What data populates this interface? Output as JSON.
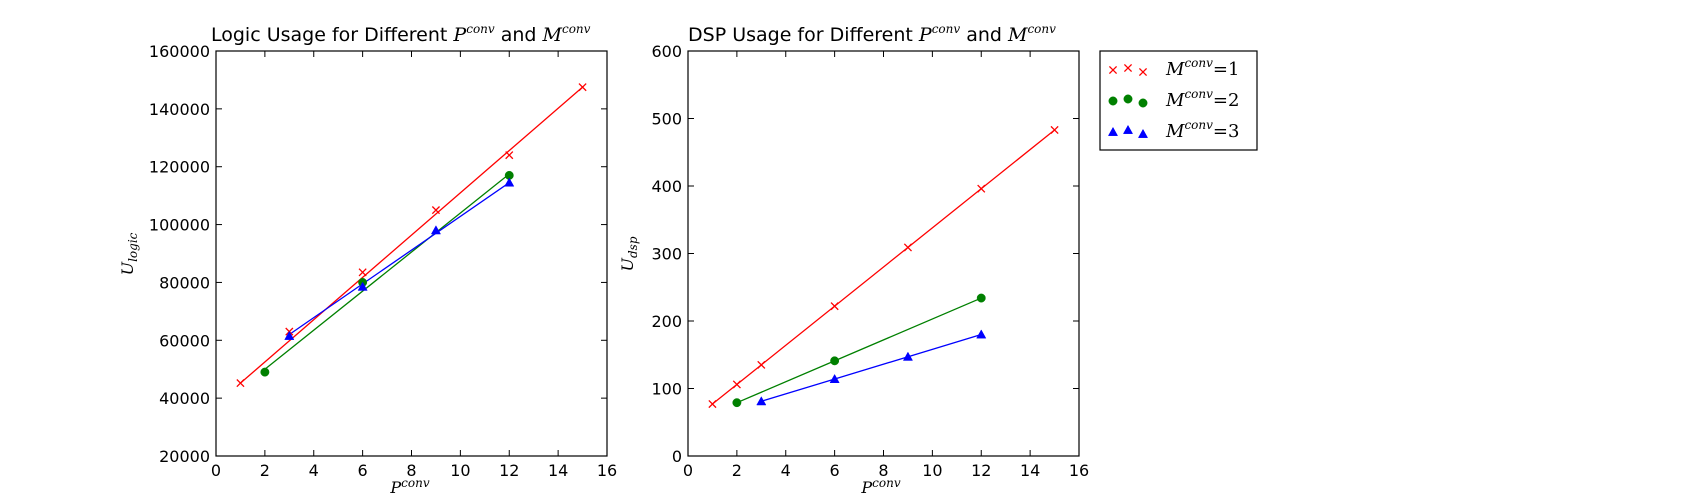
{
  "chart_data": [
    {
      "type": "line",
      "title": {
        "prefix": "Logic Usage for Different ",
        "p_sym": "P",
        "p_sup": "conv",
        "joiner": " and ",
        "m_sym": "M",
        "m_sup": "conv"
      },
      "xlabel": {
        "sym": "P",
        "sup": "conv"
      },
      "ylabel": {
        "sym": "U",
        "sub": "logic"
      },
      "xlim": [
        0,
        16
      ],
      "ylim": [
        20000,
        160000
      ],
      "xticks": [
        0,
        2,
        4,
        6,
        8,
        10,
        12,
        14,
        16
      ],
      "yticks": [
        20000,
        40000,
        60000,
        80000,
        100000,
        120000,
        140000,
        160000
      ],
      "series": [
        {
          "name": "M^conv = 1",
          "color": "#ff0000",
          "marker": "x",
          "points": [
            [
              1,
              45200
            ],
            [
              3,
              63000
            ],
            [
              6,
              83500
            ],
            [
              9,
              105000
            ],
            [
              12,
              124000
            ],
            [
              15,
              147500
            ]
          ],
          "fit": [
            [
              1,
              45200
            ],
            [
              15,
              147500
            ]
          ]
        },
        {
          "name": "M^conv = 2",
          "color": "#008000",
          "marker": "circle",
          "points": [
            [
              2,
              49000
            ],
            [
              6,
              80000
            ],
            [
              12,
              117000
            ]
          ],
          "fit": [
            [
              2,
              50000
            ],
            [
              12,
              117500
            ]
          ]
        },
        {
          "name": "M^conv = 3",
          "color": "#0000ff",
          "marker": "triangle",
          "points": [
            [
              3,
              61500
            ],
            [
              6,
              78500
            ],
            [
              9,
              98000
            ],
            [
              12,
              114500
            ]
          ],
          "fit": [
            [
              3,
              62000
            ],
            [
              12,
              114500
            ]
          ]
        }
      ]
    },
    {
      "type": "line",
      "title": {
        "prefix": "DSP Usage for Different ",
        "p_sym": "P",
        "p_sup": "conv",
        "joiner": " and ",
        "m_sym": "M",
        "m_sup": "conv"
      },
      "xlabel": {
        "sym": "P",
        "sup": "conv"
      },
      "ylabel": {
        "sym": "U",
        "sub": "dsp"
      },
      "xlim": [
        0,
        16
      ],
      "ylim": [
        0,
        600
      ],
      "xticks": [
        0,
        2,
        4,
        6,
        8,
        10,
        12,
        14,
        16
      ],
      "yticks": [
        0,
        100,
        200,
        300,
        400,
        500,
        600
      ],
      "series": [
        {
          "name": "M^conv = 1",
          "color": "#ff0000",
          "marker": "x",
          "points": [
            [
              1,
              77
            ],
            [
              2,
              106
            ],
            [
              3,
              135
            ],
            [
              6,
              222
            ],
            [
              9,
              309
            ],
            [
              12,
              396
            ],
            [
              15,
              483
            ]
          ],
          "fit": [
            [
              1,
              77
            ],
            [
              15,
              483
            ]
          ]
        },
        {
          "name": "M^conv = 2",
          "color": "#008000",
          "marker": "circle",
          "points": [
            [
              2,
              79
            ],
            [
              6,
              141
            ],
            [
              12,
              234
            ]
          ],
          "fit": [
            [
              2,
              79
            ],
            [
              12,
              234
            ]
          ]
        },
        {
          "name": "M^conv = 3",
          "color": "#0000ff",
          "marker": "triangle",
          "points": [
            [
              3,
              81
            ],
            [
              6,
              114
            ],
            [
              9,
              147
            ],
            [
              12,
              180
            ]
          ],
          "fit": [
            [
              3,
              81
            ],
            [
              12,
              180
            ]
          ]
        }
      ]
    }
  ],
  "legend": {
    "placement": "outside-right",
    "entries": [
      {
        "sym": "M",
        "sup": "conv",
        "eq": "=1",
        "color": "#ff0000",
        "marker": "x"
      },
      {
        "sym": "M",
        "sup": "conv",
        "eq": "=2",
        "color": "#008000",
        "marker": "circle"
      },
      {
        "sym": "M",
        "sup": "conv",
        "eq": "=3",
        "color": "#0000ff",
        "marker": "triangle"
      }
    ]
  }
}
